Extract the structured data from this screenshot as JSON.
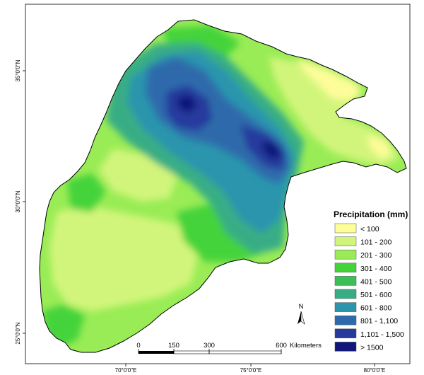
{
  "map": {
    "lat_labels": [
      "35°0'0\"N",
      "30°0'0\"N",
      "25°0'0\"N"
    ],
    "lon_labels": [
      "70°0'0\"E",
      "75°0'0\"E",
      "80°0'0\"E"
    ],
    "north_arrow": "N",
    "scale_bar": {
      "ticks": [
        "0",
        "150",
        "300",
        "600"
      ],
      "unit": "Kilometers"
    },
    "legend": {
      "title": "Precipitation (mm)",
      "items": [
        {
          "label": "< 100",
          "color": "#fdfd9a"
        },
        {
          "label": "101 - 200",
          "color": "#d1f57a"
        },
        {
          "label": "201 - 300",
          "color": "#99ec55"
        },
        {
          "label": "301 - 400",
          "color": "#45d33a"
        },
        {
          "label": "401 - 500",
          "color": "#3dbf57"
        },
        {
          "label": "501 - 600",
          "color": "#37ad85"
        },
        {
          "label": "601 - 800",
          "color": "#2a95ad"
        },
        {
          "label": "801 - 1,100",
          "color": "#2d6aab"
        },
        {
          "label": "1,101 - 1,500",
          "color": "#263a9d"
        },
        {
          "label": "> 1500",
          "color": "#11167a"
        }
      ]
    }
  }
}
